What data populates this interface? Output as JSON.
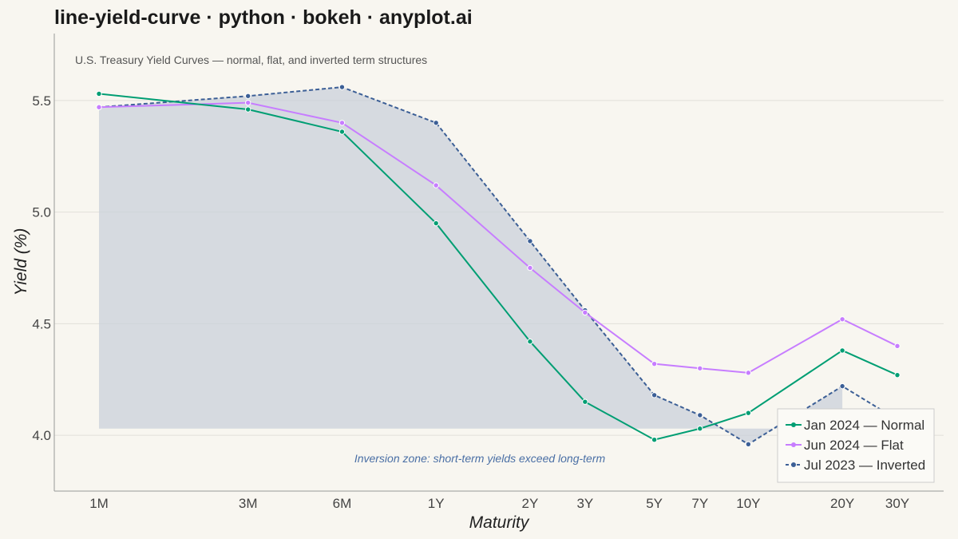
{
  "page": {
    "title": "line-yield-curve · python · bokeh · anyplot.ai"
  },
  "chart_data": {
    "type": "line",
    "subtitle": "U.S. Treasury Yield Curves — normal, flat, and inverted term structures",
    "xlabel": "Maturity",
    "ylabel": "Yield (%)",
    "x_scale": "log (maturity in years)",
    "categories": [
      "1M",
      "3M",
      "6M",
      "1Y",
      "2Y",
      "3Y",
      "5Y",
      "7Y",
      "10Y",
      "20Y",
      "30Y"
    ],
    "maturity_years": [
      0.0833,
      0.25,
      0.5,
      1,
      2,
      3,
      5,
      7,
      10,
      20,
      30
    ],
    "ylim": [
      3.75,
      5.8
    ],
    "yticks": [
      "4.0",
      "4.5",
      "5.0",
      "5.5"
    ],
    "grid": "horizontal",
    "legend_position": "bottom-right",
    "series": [
      {
        "name": "Jan 2024 — Normal",
        "color": "#009e73",
        "dash": "solid",
        "values": [
          5.53,
          5.46,
          5.36,
          4.95,
          4.42,
          4.15,
          3.98,
          4.03,
          4.1,
          4.38,
          4.27
        ]
      },
      {
        "name": "Jun 2024 — Flat",
        "color": "#c77dff",
        "dash": "solid",
        "values": [
          5.47,
          5.49,
          5.4,
          5.12,
          4.75,
          4.55,
          4.32,
          4.3,
          4.28,
          4.52,
          4.4
        ]
      },
      {
        "name": "Jul 2023 — Inverted",
        "color": "#3c5f96",
        "dash": "dashed",
        "values": [
          5.47,
          5.52,
          5.56,
          5.4,
          4.87,
          4.56,
          4.18,
          4.09,
          3.96,
          4.22,
          4.07
        ]
      }
    ],
    "inversion_zone": {
      "color": "#c8cfd8",
      "baseline": 4.03,
      "annotation": "Inversion zone: short-term yields exceed long-term"
    }
  }
}
